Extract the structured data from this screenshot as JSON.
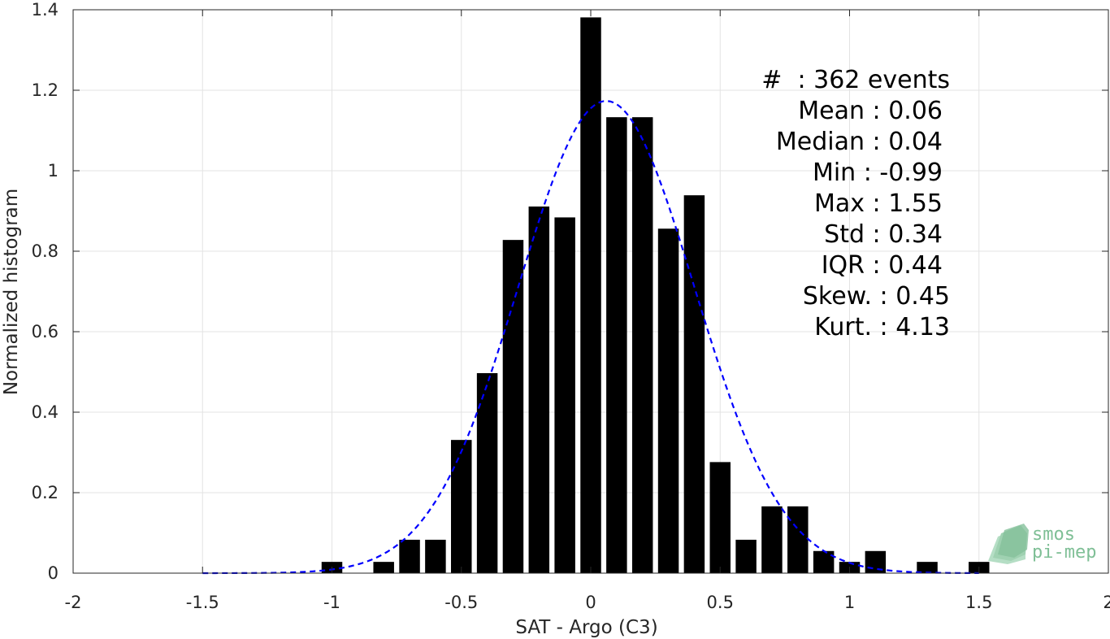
{
  "chart_data": {
    "type": "bar",
    "xlabel": "SAT - Argo (C3)",
    "ylabel": "Normalized histogram",
    "xlim": [
      -2,
      2
    ],
    "ylim": [
      0,
      1.4
    ],
    "xticks": [
      "-2",
      "-1.5",
      "-1",
      "-0.5",
      "0",
      "0.5",
      "1",
      "1.5",
      "2"
    ],
    "yticks": [
      "0",
      "0.2",
      "0.4",
      "0.6",
      "0.8",
      "1",
      "1.2",
      "1.4"
    ],
    "grid": true,
    "bars": {
      "x": [
        -1.0,
        -0.8,
        -0.7,
        -0.6,
        -0.5,
        -0.4,
        -0.3,
        -0.2,
        -0.1,
        0.0,
        0.1,
        0.2,
        0.3,
        0.4,
        0.5,
        0.6,
        0.7,
        0.8,
        0.9,
        1.0,
        1.1,
        1.3,
        1.5
      ],
      "values": [
        0.028,
        0.028,
        0.083,
        0.083,
        0.331,
        0.497,
        0.828,
        0.911,
        0.884,
        1.381,
        1.133,
        1.133,
        0.856,
        0.939,
        0.276,
        0.083,
        0.166,
        0.166,
        0.055,
        0.028,
        0.055,
        0.028,
        0.028
      ],
      "color": "#000000"
    },
    "fit": {
      "type": "gaussian",
      "mean": 0.06,
      "std": 0.34,
      "x_range": [
        -1.5,
        1.5
      ],
      "color": "#0000ff",
      "style": "dashed"
    },
    "stats": [
      {
        "label": "#  : 362 events"
      },
      {
        "label": "Mean : 0.06"
      },
      {
        "label": "Median : 0.04"
      },
      {
        "label": "Min : -0.99"
      },
      {
        "label": "Max : 1.55"
      },
      {
        "label": "Std : 0.34"
      },
      {
        "label": "IQR : 0.44"
      },
      {
        "label": "Skew. : 0.45"
      },
      {
        "label": "Kurt. : 4.13"
      }
    ],
    "logo": {
      "line1": "smos",
      "line2": "pi-mep",
      "color": "#7fbf96"
    }
  }
}
